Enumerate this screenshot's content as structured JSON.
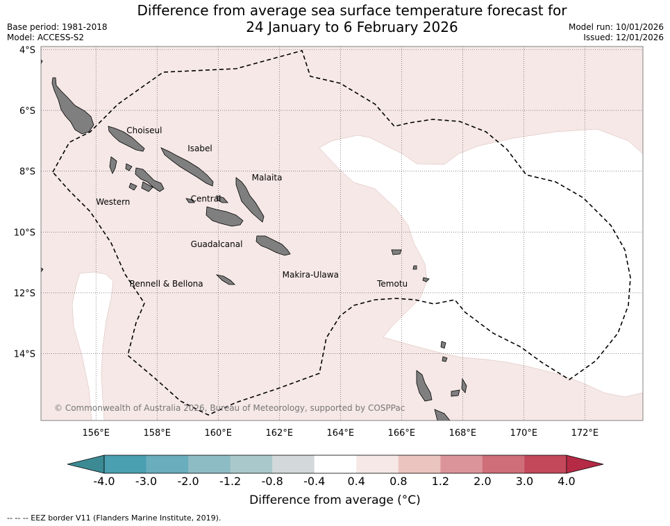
{
  "title": {
    "line1": "Difference from average sea surface temperature forecast for",
    "line2": "24 January to 6 February 2026"
  },
  "meta_left": {
    "base_period": "Base period: 1981-2018",
    "model": "Model: ACCESS-S2"
  },
  "meta_right": {
    "model_run": "Model run: 10/01/2026",
    "issued": "Issued: 12/01/2026"
  },
  "map": {
    "lon_range": [
      154.2,
      173.9
    ],
    "lat_range": [
      -16.2,
      -3.9
    ],
    "lon_ticks": [
      "156°E",
      "158°E",
      "160°E",
      "162°E",
      "164°E",
      "166°E",
      "168°E",
      "170°E",
      "172°E"
    ],
    "lat_ticks": [
      "4°S",
      "6°S",
      "8°S",
      "10°S",
      "12°S",
      "14°S"
    ],
    "background_color": "#f5e8e6",
    "land_color": "#7f7f7f",
    "province_labels": [
      {
        "name": "Choiseul",
        "lon": 157.0,
        "lat": -6.75
      },
      {
        "name": "Isabel",
        "lon": 159.0,
        "lat": -7.35
      },
      {
        "name": "Malaita",
        "lon": 161.1,
        "lat": -8.3
      },
      {
        "name": "Western",
        "lon": 156.0,
        "lat": -9.1
      },
      {
        "name": "Central",
        "lon": 159.1,
        "lat": -9.0
      },
      {
        "name": "Guadalcanal",
        "lon": 159.1,
        "lat": -10.5
      },
      {
        "name": "Makira-Ulawa",
        "lon": 162.1,
        "lat": -11.5
      },
      {
        "name": "Rennell & Bellona",
        "lon": 157.1,
        "lat": -11.8
      },
      {
        "name": "Temotu",
        "lon": 165.2,
        "lat": -11.8
      }
    ],
    "attribution": "© Commonwealth of Australia 2026, Bureau of Meteorology, supported by COSPPac"
  },
  "colorbar": {
    "title": "Difference from average (°C)",
    "tick_labels": [
      "-4.0",
      "-3.0",
      "-2.0",
      "-1.2",
      "-0.8",
      "-0.4",
      "0.4",
      "0.8",
      "1.2",
      "2.0",
      "3.0",
      "4.0"
    ],
    "colors": [
      "#4a9fb0",
      "#6aadbc",
      "#8dbcc5",
      "#a9c8cb",
      "#d3d9da",
      "#ffffff",
      "#f5e8e6",
      "#eac4bf",
      "#dc949b",
      "#cf6d78",
      "#c2485a"
    ],
    "under_color": "#3c8a94",
    "over_color": "#b52a45"
  },
  "footnote": "--  --  -- EEZ border V11 (Flanders Marine Institute, 2019)."
}
